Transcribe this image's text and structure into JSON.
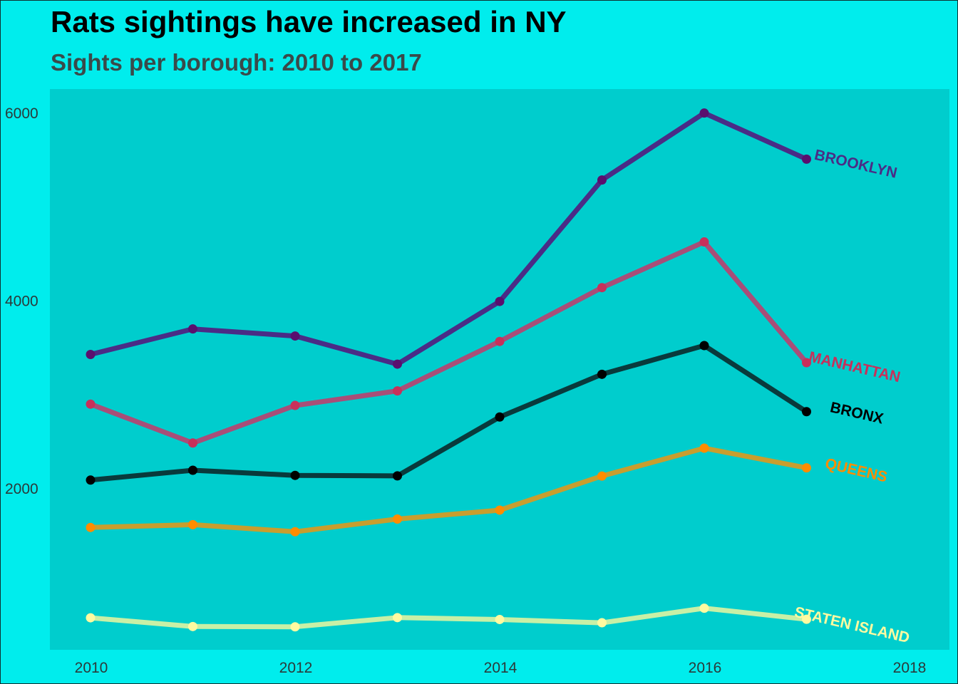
{
  "title": "Rats sightings have increased in NY",
  "subtitle": "Sights per borough: 2010 to 2017",
  "colors": {
    "page_background": "#00eded",
    "panel_background": "#00cdcd"
  },
  "chart_data": {
    "type": "line",
    "title": "Rats sightings have increased in NY",
    "subtitle": "Sights per borough: 2010 to 2017",
    "xlabel": "",
    "ylabel": "",
    "xlim": [
      2009.95,
      2018.35
    ],
    "ylim": [
      230,
      6210
    ],
    "x_ticks": [
      2010,
      2012,
      2014,
      2016,
      2018
    ],
    "y_ticks": [
      2000,
      4000,
      6000
    ],
    "grid": false,
    "legend": "none (series labelled at line ends)",
    "x": [
      2010,
      2011,
      2012,
      2013,
      2014,
      2015,
      2016,
      2017
    ],
    "series": [
      {
        "name": "BROOKLYN",
        "values": [
          3423,
          3695,
          3620,
          3320,
          3988,
          5282,
          5995,
          5504
        ],
        "line_color": "#4a2c86",
        "point_color": "#5a0f6e",
        "label_color": "#4a2c86"
      },
      {
        "name": "MANHATTAN",
        "values": [
          2894,
          2480,
          2880,
          3035,
          3562,
          4135,
          4622,
          3336
        ],
        "line_color": "#a84e78",
        "point_color": "#c8305a",
        "label_color": "#c8305a"
      },
      {
        "name": "BRONX",
        "values": [
          2085,
          2190,
          2135,
          2130,
          2757,
          3212,
          3518,
          2814
        ],
        "line_color": "#093a3c",
        "point_color": "#000000",
        "label_color": "#000000"
      },
      {
        "name": "QUEENS",
        "values": [
          1580,
          1610,
          1535,
          1670,
          1765,
          2128,
          2425,
          2215
        ],
        "line_color": "#c89e2e",
        "point_color": "#ff8c00",
        "label_color": "#ff8c00"
      },
      {
        "name": "STATEN ISLAND",
        "values": [
          618,
          525,
          522,
          620,
          600,
          565,
          720,
          602
        ],
        "line_color": "#c8f0a6",
        "point_color": "#fffaa0",
        "label_color": "#fffaa0"
      }
    ]
  }
}
